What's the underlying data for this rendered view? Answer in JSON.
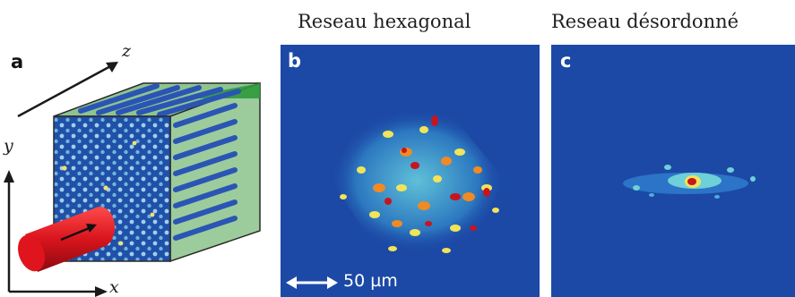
{
  "panels": {
    "a": {
      "label": "a",
      "axis_z": "z",
      "axis_y": "y",
      "axis_x": "x"
    },
    "b": {
      "label": "b",
      "title": "Reseau hexagonal",
      "scale_bar": "50 µm"
    },
    "c": {
      "label": "c",
      "title": "Reseau désordonné"
    }
  },
  "colors": {
    "background_blue": "#1c49a6",
    "hot_red": "#c8141e",
    "cube_green": "#58a85a",
    "rod_red": "#d8141c"
  }
}
